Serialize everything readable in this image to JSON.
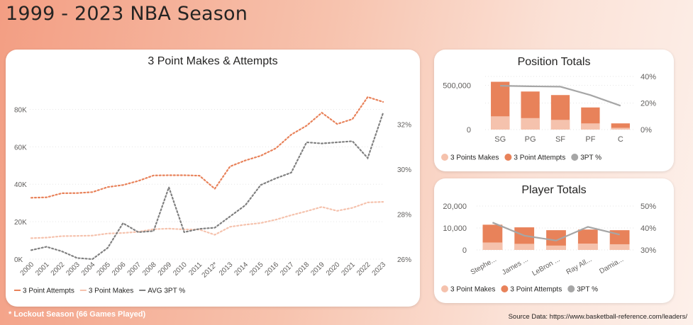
{
  "page": {
    "title": "1999 - 2023 NBA Season",
    "footnote": "* Lockout Season (66 Games Played)",
    "source": "Source Data: https://www.basketball-reference.com/leaders/"
  },
  "colors": {
    "attempts": "#e8825a",
    "makes": "#f5c2ad",
    "pct": "#808080"
  },
  "chart_data": [
    {
      "type": "line",
      "title": "3 Point Makes & Attempts",
      "x": [
        "2000",
        "2001",
        "2002",
        "2003",
        "2004",
        "2005",
        "2006",
        "2007",
        "2008",
        "2009",
        "2010",
        "2011",
        "2012*",
        "2013",
        "2014",
        "2015",
        "2016",
        "2017",
        "2018",
        "2019",
        "2020",
        "2021",
        "2022",
        "2023"
      ],
      "y_ticks": [
        "0K",
        "20K",
        "40K",
        "60K",
        "80K"
      ],
      "ylim": [
        0,
        90000
      ],
      "y2_ticks": [
        "26%",
        "28%",
        "30%",
        "32%"
      ],
      "y2lim": [
        26,
        33.5
      ],
      "series": [
        {
          "name": "3 Point Attempts",
          "axis": "left",
          "style": "dotted",
          "color": "#e8825a",
          "values": [
            32800,
            33000,
            35200,
            35300,
            35800,
            38500,
            39600,
            41800,
            44700,
            44800,
            44800,
            44600,
            37600,
            49500,
            52700,
            55200,
            59200,
            66500,
            71300,
            78200,
            72200,
            74800,
            86600,
            84000
          ]
        },
        {
          "name": "3 Point Makes",
          "axis": "left",
          "style": "dotted",
          "color": "#f5c2ad",
          "values": [
            11200,
            11500,
            12300,
            12400,
            12600,
            13700,
            14000,
            14600,
            16000,
            16300,
            15900,
            15800,
            13000,
            17300,
            18400,
            19300,
            21100,
            23500,
            25600,
            27900,
            25800,
            27400,
            30300,
            30600
          ]
        },
        {
          "name": "AVG 3PT %",
          "axis": "right",
          "style": "dotted",
          "color": "#808080",
          "values": [
            26.4,
            26.55,
            26.35,
            26.05,
            26.0,
            26.5,
            27.6,
            27.2,
            27.25,
            29.2,
            27.2,
            27.35,
            27.4,
            27.9,
            28.4,
            29.3,
            29.6,
            29.85,
            31.2,
            31.15,
            31.2,
            31.25,
            30.5,
            32.5
          ]
        }
      ]
    },
    {
      "type": "bar",
      "title": "Position Totals",
      "categories": [
        "SG",
        "PG",
        "SF",
        "PF",
        "C"
      ],
      "y_ticks": [
        "0",
        "500,000"
      ],
      "ylim": [
        0,
        600000
      ],
      "y2_ticks": [
        "0%",
        "20%",
        "40%"
      ],
      "y2lim": [
        0,
        40
      ],
      "series": [
        {
          "name": "3 Points Makes",
          "color": "#f5c2ad",
          "values": [
            150000,
            130000,
            110000,
            70000,
            20000
          ]
        },
        {
          "name": "3 Point Attempts",
          "color": "#e8825a",
          "values": [
            540000,
            430000,
            390000,
            250000,
            70000
          ]
        },
        {
          "name": "3PT %",
          "axis": "right",
          "color": "#a6a6a6",
          "values": [
            33,
            32.6,
            32.3,
            26,
            18
          ]
        }
      ]
    },
    {
      "type": "bar",
      "title": "Player Totals",
      "categories": [
        "Stephe...",
        "James ...",
        "LeBron ...",
        "Ray All...",
        "Damia..."
      ],
      "y_ticks": [
        "0",
        "10,000",
        "20,000"
      ],
      "ylim": [
        0,
        20000
      ],
      "y2_ticks": [
        "30%",
        "40%",
        "50%"
      ],
      "y2lim": [
        30,
        50
      ],
      "series": [
        {
          "name": "3 Point Makes",
          "color": "#f5c2ad",
          "values": [
            3400,
            2800,
            2000,
            2900,
            2600
          ]
        },
        {
          "name": "3 Point Attempts",
          "color": "#e8825a",
          "values": [
            11500,
            10300,
            9000,
            9300,
            9000
          ]
        },
        {
          "name": "3PT %",
          "axis": "right",
          "color": "#a6a6a6",
          "values": [
            42.5,
            36.5,
            34.3,
            40.5,
            37
          ]
        }
      ]
    }
  ]
}
